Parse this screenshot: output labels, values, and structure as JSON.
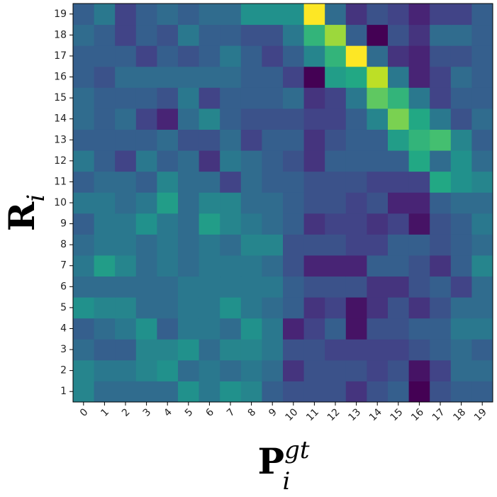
{
  "chart_data": {
    "type": "heatmap",
    "colormap": "viridis",
    "xlabel": {
      "text": "P",
      "subscript": "i",
      "superscript": "gt"
    },
    "ylabel": {
      "text": "R",
      "subscript": "i"
    },
    "x_categories": [
      "0",
      "1",
      "2",
      "3",
      "4",
      "5",
      "6",
      "7",
      "8",
      "9",
      "10",
      "11",
      "12",
      "13",
      "14",
      "15",
      "16",
      "17",
      "18",
      "19"
    ],
    "y_categories": [
      "1",
      "2",
      "3",
      "4",
      "5",
      "6",
      "7",
      "8",
      "9",
      "10",
      "11",
      "12",
      "13",
      "14",
      "15",
      "16",
      "17",
      "18",
      "19"
    ],
    "values": [
      [
        0.45,
        0.35,
        0.35,
        0.35,
        0.35,
        0.5,
        0.4,
        0.5,
        0.45,
        0.3,
        0.25,
        0.25,
        0.25,
        0.15,
        0.25,
        0.3,
        0.0,
        0.25,
        0.3,
        0.3
      ],
      [
        0.45,
        0.4,
        0.4,
        0.45,
        0.5,
        0.35,
        0.4,
        0.35,
        0.4,
        0.35,
        0.15,
        0.25,
        0.25,
        0.25,
        0.2,
        0.25,
        0.05,
        0.2,
        0.35,
        0.35
      ],
      [
        0.35,
        0.3,
        0.3,
        0.45,
        0.45,
        0.5,
        0.35,
        0.45,
        0.45,
        0.4,
        0.25,
        0.25,
        0.2,
        0.2,
        0.2,
        0.2,
        0.25,
        0.3,
        0.35,
        0.3
      ],
      [
        0.3,
        0.35,
        0.4,
        0.5,
        0.3,
        0.4,
        0.4,
        0.35,
        0.5,
        0.4,
        0.1,
        0.2,
        0.3,
        0.05,
        0.25,
        0.25,
        0.3,
        0.3,
        0.4,
        0.4
      ],
      [
        0.5,
        0.45,
        0.45,
        0.35,
        0.35,
        0.4,
        0.4,
        0.5,
        0.4,
        0.35,
        0.3,
        0.15,
        0.2,
        0.05,
        0.15,
        0.25,
        0.15,
        0.25,
        0.35,
        0.35
      ],
      [
        0.35,
        0.35,
        0.35,
        0.35,
        0.35,
        0.4,
        0.4,
        0.4,
        0.4,
        0.4,
        0.3,
        0.25,
        0.25,
        0.25,
        0.15,
        0.15,
        0.25,
        0.3,
        0.2,
        0.35
      ],
      [
        0.4,
        0.55,
        0.45,
        0.35,
        0.4,
        0.35,
        0.4,
        0.4,
        0.4,
        0.35,
        0.25,
        0.1,
        0.1,
        0.1,
        0.3,
        0.3,
        0.25,
        0.15,
        0.3,
        0.45
      ],
      [
        0.35,
        0.4,
        0.4,
        0.35,
        0.4,
        0.35,
        0.4,
        0.35,
        0.45,
        0.45,
        0.25,
        0.25,
        0.25,
        0.2,
        0.2,
        0.3,
        0.3,
        0.25,
        0.3,
        0.35
      ],
      [
        0.3,
        0.4,
        0.4,
        0.5,
        0.4,
        0.35,
        0.55,
        0.45,
        0.4,
        0.35,
        0.3,
        0.15,
        0.2,
        0.2,
        0.15,
        0.2,
        0.05,
        0.25,
        0.3,
        0.4
      ],
      [
        0.4,
        0.4,
        0.35,
        0.4,
        0.55,
        0.35,
        0.45,
        0.45,
        0.35,
        0.35,
        0.3,
        0.25,
        0.25,
        0.2,
        0.25,
        0.1,
        0.1,
        0.3,
        0.35,
        0.35
      ],
      [
        0.3,
        0.35,
        0.35,
        0.3,
        0.45,
        0.35,
        0.35,
        0.2,
        0.35,
        0.3,
        0.3,
        0.25,
        0.25,
        0.25,
        0.2,
        0.2,
        0.2,
        0.6,
        0.5,
        0.45
      ],
      [
        0.4,
        0.3,
        0.2,
        0.4,
        0.3,
        0.35,
        0.15,
        0.4,
        0.35,
        0.3,
        0.25,
        0.15,
        0.3,
        0.3,
        0.3,
        0.3,
        0.6,
        0.35,
        0.5,
        0.35
      ],
      [
        0.3,
        0.3,
        0.3,
        0.3,
        0.35,
        0.25,
        0.25,
        0.35,
        0.2,
        0.3,
        0.3,
        0.15,
        0.25,
        0.3,
        0.3,
        0.55,
        0.65,
        0.7,
        0.45,
        0.3
      ],
      [
        0.35,
        0.3,
        0.35,
        0.2,
        0.1,
        0.35,
        0.45,
        0.3,
        0.25,
        0.25,
        0.25,
        0.2,
        0.2,
        0.3,
        0.45,
        0.8,
        0.6,
        0.4,
        0.25,
        0.35
      ],
      [
        0.35,
        0.3,
        0.3,
        0.3,
        0.25,
        0.4,
        0.2,
        0.3,
        0.3,
        0.3,
        0.35,
        0.15,
        0.2,
        0.4,
        0.75,
        0.65,
        0.4,
        0.2,
        0.3,
        0.3
      ],
      [
        0.3,
        0.25,
        0.35,
        0.35,
        0.35,
        0.35,
        0.35,
        0.35,
        0.3,
        0.3,
        0.2,
        0.0,
        0.55,
        0.6,
        0.9,
        0.4,
        0.1,
        0.2,
        0.35,
        0.3
      ],
      [
        0.3,
        0.3,
        0.3,
        0.2,
        0.3,
        0.25,
        0.3,
        0.4,
        0.3,
        0.2,
        0.3,
        0.45,
        0.65,
        1.0,
        0.35,
        0.15,
        0.1,
        0.25,
        0.25,
        0.3
      ],
      [
        0.35,
        0.3,
        0.2,
        0.3,
        0.25,
        0.4,
        0.3,
        0.3,
        0.25,
        0.25,
        0.4,
        0.65,
        0.85,
        0.3,
        0.0,
        0.25,
        0.15,
        0.35,
        0.35,
        0.3
      ],
      [
        0.3,
        0.4,
        0.2,
        0.3,
        0.35,
        0.3,
        0.35,
        0.35,
        0.5,
        0.5,
        0.5,
        1.0,
        0.35,
        0.15,
        0.25,
        0.2,
        0.1,
        0.2,
        0.2,
        0.3
      ]
    ]
  }
}
